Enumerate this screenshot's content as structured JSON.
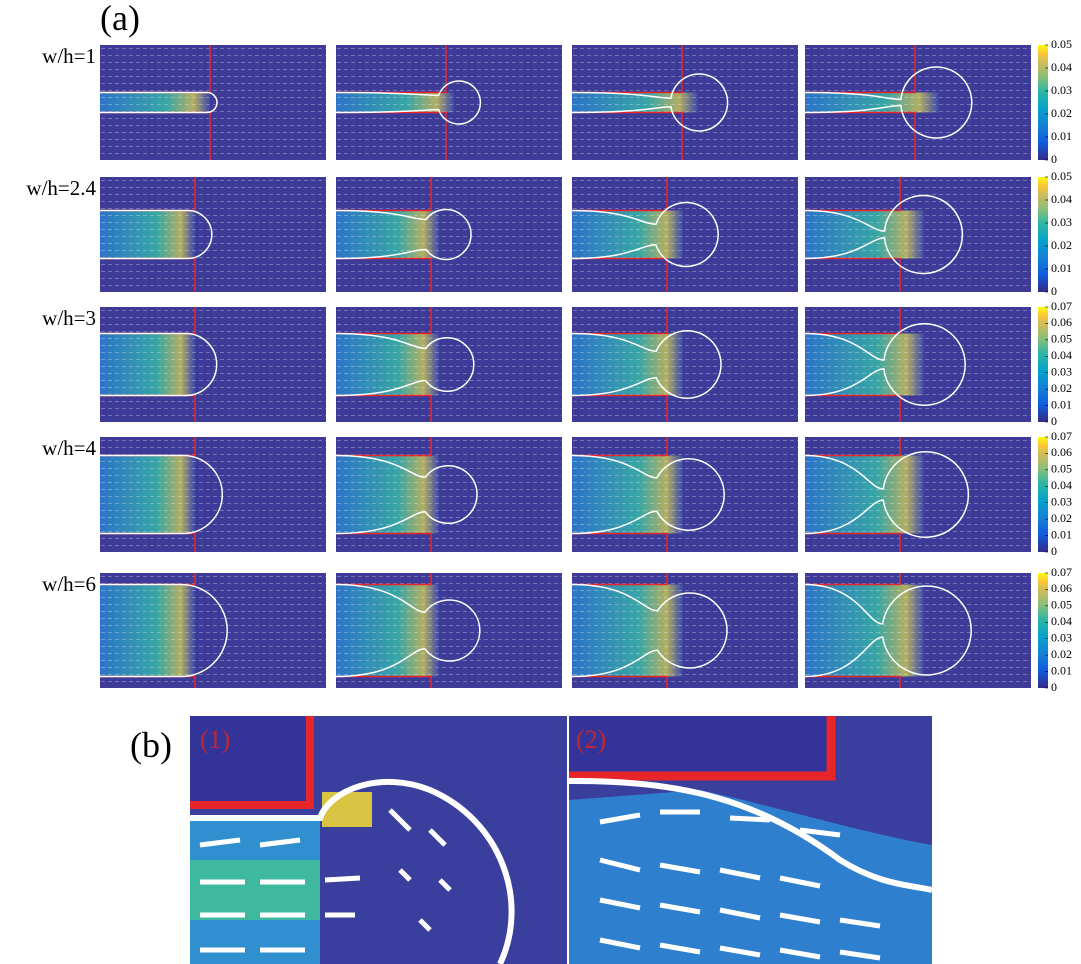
{
  "figure": {
    "panel_a": {
      "label": "(a)",
      "rows": [
        {
          "label": "w/h=1",
          "colorbar": {
            "lim": [
              0,
              0.05
            ],
            "ticks": [
              0,
              0.01,
              0.02,
              0.03,
              0.04,
              0.05
            ]
          }
        },
        {
          "label": "w/h=2.4",
          "colorbar": {
            "lim": [
              0,
              0.05
            ],
            "ticks": [
              0,
              0.01,
              0.02,
              0.03,
              0.04,
              0.05
            ]
          }
        },
        {
          "label": "w/h=3",
          "colorbar": {
            "lim": [
              0,
              0.07
            ],
            "ticks": [
              0,
              0.01,
              0.02,
              0.03,
              0.04,
              0.05,
              0.06,
              0.07
            ]
          }
        },
        {
          "label": "w/h=4",
          "colorbar": {
            "lim": [
              0,
              0.07
            ],
            "ticks": [
              0,
              0.01,
              0.02,
              0.03,
              0.04,
              0.05,
              0.06,
              0.07
            ]
          }
        },
        {
          "label": "w/h=6",
          "colorbar": {
            "lim": [
              0,
              0.07
            ],
            "ticks": [
              0,
              0.01,
              0.02,
              0.03,
              0.04,
              0.05,
              0.06,
              0.07
            ]
          }
        }
      ]
    },
    "panel_b": {
      "label": "(b)",
      "insets": [
        "(1)",
        "(2)"
      ]
    }
  }
}
